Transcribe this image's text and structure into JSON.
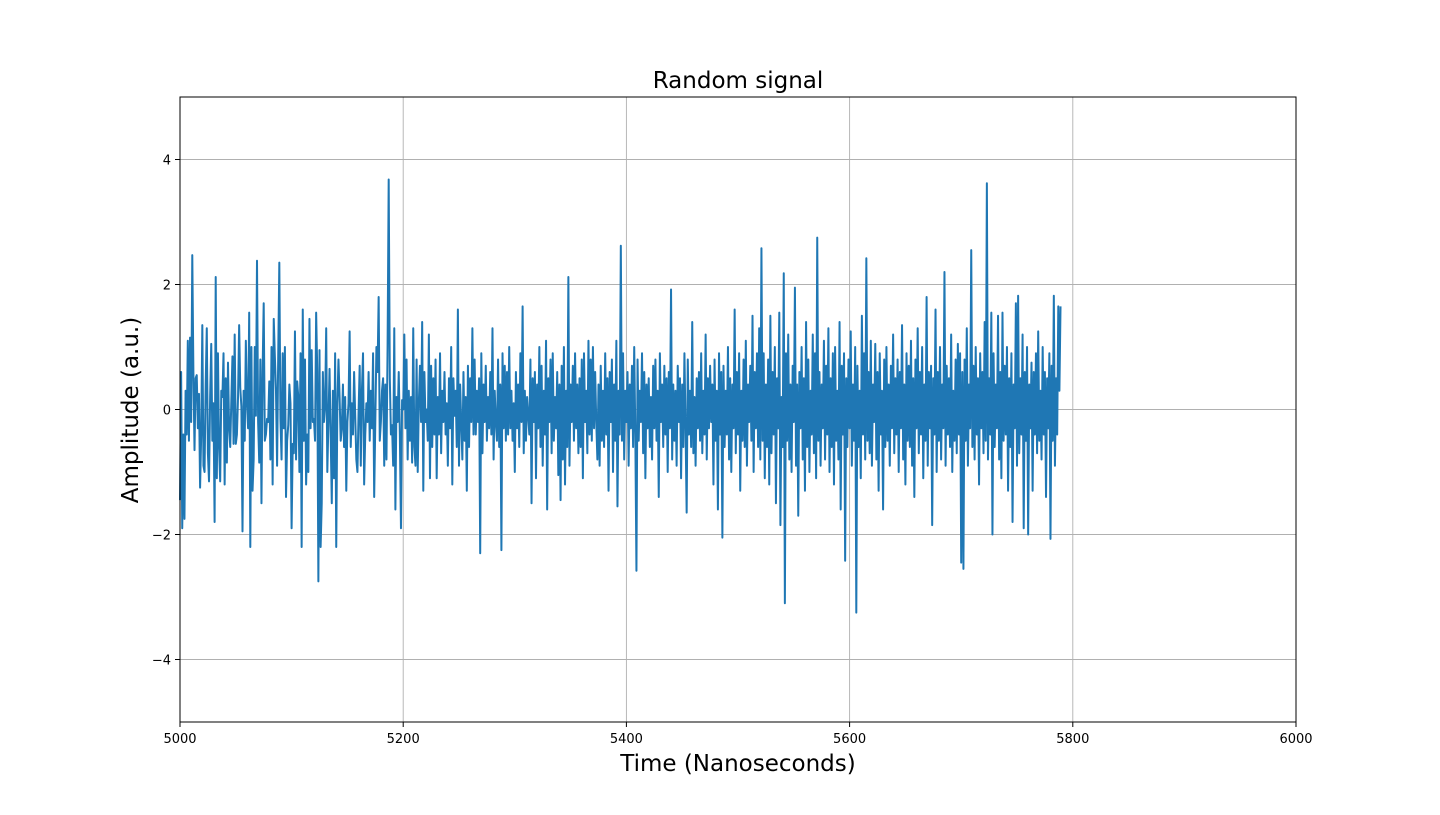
{
  "chart_data": {
    "type": "line",
    "title": "Random signal",
    "xlabel": "Time (Nanoseconds)",
    "ylabel": "Amplitude (a.u.)",
    "xlim": [
      5000,
      6000
    ],
    "ylim": [
      -5,
      5
    ],
    "xticks": [
      5000,
      5200,
      5400,
      5600,
      5800,
      6000
    ],
    "xtick_labels": [
      "5000",
      "5200",
      "5400",
      "5600",
      "5800",
      "6000"
    ],
    "yticks": [
      -4,
      -2,
      0,
      2,
      4
    ],
    "ytick_labels": [
      "−4",
      "−2",
      "0",
      "2",
      "4"
    ],
    "grid": true,
    "legend": "none",
    "colors": {
      "line": "#1f77b4",
      "grid": "#b0b0b0",
      "axes": "#000000"
    },
    "series": [
      {
        "x_start": 5000,
        "x_step": 1,
        "values": [
          -1.45,
          0.6,
          -1.9,
          -0.4,
          -1.75,
          0.3,
          -0.4,
          1.1,
          -0.5,
          1.15,
          -0.2,
          2.47,
          0.6,
          -0.65,
          0.5,
          0.55,
          -0.3,
          0.25,
          -1.25,
          -0.4,
          1.35,
          -0.9,
          -1.0,
          0.4,
          1.3,
          -0.7,
          -1.15,
          0.2,
          1.05,
          -0.5,
          0.1,
          -1.8,
          2.12,
          -1.1,
          0.9,
          -0.6,
          -1.15,
          0.3,
          0.2,
          0.9,
          -1.2,
          0.5,
          -0.85,
          0.75,
          -0.3,
          -0.6,
          0.15,
          0.85,
          -0.55,
          1.2,
          -0.55,
          -0.4,
          0.2,
          1.35,
          0.35,
          0.05,
          -1.95,
          0.3,
          -0.5,
          1.1,
          0.1,
          -0.3,
          1.55,
          -2.2,
          1.0,
          -1.3,
          -0.8,
          1.0,
          -0.1,
          2.38,
          -0.2,
          -0.85,
          0.8,
          -1.5,
          0.6,
          1.7,
          -0.5,
          -0.4,
          -0.15,
          -0.2,
          0.45,
          -0.8,
          1.0,
          -1.2,
          1.45,
          0.85,
          0.3,
          -0.9,
          0.85,
          2.35,
          -0.15,
          -0.8,
          0.9,
          -0.3,
          1.0,
          -1.4,
          -0.5,
          -0.25,
          0.4,
          0.1,
          -1.9,
          -0.55,
          -0.7,
          1.25,
          -0.8,
          0.45,
          0.2,
          -1.0,
          0.9,
          -2.2,
          1.6,
          -0.5,
          0.8,
          -1.2,
          -0.4,
          -1.0,
          1.45,
          -0.3,
          0.95,
          -0.2,
          -0.15,
          -0.5,
          1.55,
          0.6,
          -2.75,
          0.95,
          -2.2,
          -1.5,
          0.6,
          -0.2,
          0.05,
          1.3,
          -1.0,
          -0.2,
          0.65,
          -0.4,
          -1.5,
          0.3,
          -1.1,
          0.9,
          -2.2,
          0.1,
          0.8,
          0.2,
          -0.5,
          -0.3,
          0.4,
          -0.6,
          0.2,
          -1.3,
          -0.2,
          0.1,
          1.25,
          -0.6,
          0.1,
          -0.4,
          0.6,
          -0.1,
          -0.8,
          -1.0,
          -0.05,
          0.7,
          -0.9,
          0.3,
          0.9,
          -1.2,
          -0.4,
          0.1,
          -0.2,
          0.6,
          -0.5,
          0.3,
          -0.3,
          0.9,
          -1.4,
          -0.2,
          1.0,
          0.6,
          1.8,
          -0.5,
          -0.2,
          0.3,
          0.5,
          -0.9,
          0.4,
          -0.8,
          1.0,
          3.68,
          0.5,
          -0.4,
          -0.25,
          -0.9,
          1.3,
          -1.6,
          0.2,
          -0.2,
          0.6,
          -0.4,
          -1.9,
          0.15,
          0.0,
          1.2,
          -0.3,
          0.8,
          -0.8,
          0.3,
          -0.5,
          0.2,
          -0.85,
          1.3,
          -0.6,
          -0.9,
          0.8,
          -1.0,
          0.1,
          0.7,
          -0.2,
          1.4,
          -1.3,
          0.6,
          -0.2,
          0.0,
          -0.5,
          1.2,
          -1.1,
          0.7,
          -0.6,
          0.5,
          -0.4,
          0.8,
          -1.1,
          0.2,
          -0.4,
          0.9,
          -0.7,
          0.3,
          -0.2,
          0.6,
          -0.4,
          0.1,
          -0.9,
          0.5,
          -0.3,
          1.0,
          -1.2,
          0.5,
          -0.1,
          0.3,
          -0.6,
          1.6,
          -0.9,
          0.4,
          -0.2,
          -0.8,
          0.6,
          -0.5,
          0.2,
          -1.3,
          0.7,
          -0.6,
          0.5,
          -0.2,
          1.3,
          -0.4,
          0.8,
          -0.4,
          0.3,
          -0.2,
          0.5,
          -2.3,
          0.9,
          -0.7,
          0.4,
          -0.2,
          0.7,
          -0.5,
          0.2,
          -0.3,
          0.6,
          -0.4,
          1.3,
          -0.8,
          0.3,
          -0.2,
          -0.5,
          0.8,
          -0.6,
          0.4,
          -2.25,
          0.9,
          -0.3,
          0.7,
          -0.5,
          0.6,
          -0.4,
          1.0,
          -0.3,
          0.3,
          -0.5,
          0.1,
          -1.0,
          0.6,
          -0.3,
          0.4,
          -0.6,
          0.9,
          -0.2,
          1.65,
          -0.7,
          0.3,
          -0.5,
          0.2,
          -0.1,
          -0.4,
          0.8,
          -1.5,
          0.5,
          -0.2,
          0.6,
          -1.1,
          0.4,
          -0.3,
          1.0,
          -0.6,
          0.7,
          -0.9,
          0.3,
          -0.4,
          1.1,
          -1.6,
          0.5,
          -0.2,
          0.8,
          -0.7,
          0.9,
          -0.5,
          0.2,
          -0.3,
          0.6,
          -1.05,
          0.4,
          -1.45,
          0.7,
          -0.8,
          1.0,
          -1.2,
          0.3,
          -0.6,
          2.12,
          -0.9,
          0.4,
          -0.2,
          0.7,
          -0.5,
          0.9,
          -0.3,
          0.4,
          -0.7,
          0.5,
          -0.6,
          0.8,
          -1.1,
          0.9,
          -0.2,
          0.3,
          -0.7,
          1.1,
          -0.4,
          0.8,
          -0.5,
          1.0,
          -0.3,
          0.6,
          -0.2,
          -0.8,
          0.4,
          -0.9,
          0.7,
          -0.5,
          0.3,
          -0.6,
          0.9,
          -0.4,
          0.5,
          -1.3,
          0.6,
          -0.2,
          0.8,
          -1.0,
          0.4,
          -0.5,
          1.1,
          -1.55,
          0.3,
          -0.4,
          2.62,
          -0.5,
          0.9,
          -0.8,
          0.3,
          -0.2,
          0.6,
          -0.9,
          0.4,
          -0.3,
          0.7,
          -0.6,
          1.0,
          -0.4,
          -2.58,
          0.8,
          -0.5,
          0.3,
          -0.2,
          0.9,
          -0.7,
          0.6,
          -1.1,
          0.4,
          -0.3,
          0.5,
          -0.6,
          0.2,
          -0.8,
          0.7,
          -0.3,
          0.8,
          -0.5,
          0.3,
          -1.4,
          0.9,
          -0.2,
          0.4,
          -0.6,
          0.7,
          -0.4,
          0.5,
          -1.0,
          0.6,
          -0.3,
          1.92,
          -0.8,
          0.4,
          -0.5,
          0.3,
          -0.9,
          0.7,
          -0.2,
          0.5,
          -1.1,
          0.4,
          -0.6,
          0.9,
          -0.3,
          -1.65,
          0.8,
          -0.4,
          0.3,
          -0.6,
          1.4,
          -0.7,
          0.2,
          -0.9,
          0.5,
          -0.3,
          0.6,
          -0.5,
          0.9,
          -0.7,
          0.3,
          -0.4,
          1.2,
          -0.8,
          0.5,
          -0.3,
          0.7,
          -0.2,
          0.4,
          -1.2,
          0.8,
          -0.5,
          0.3,
          -1.6,
          0.9,
          -0.4,
          0.6,
          -2.05,
          0.7,
          -0.6,
          0.3,
          -0.4,
          1.0,
          -0.8,
          0.5,
          -1.0,
          0.4,
          -0.3,
          1.6,
          -0.7,
          0.6,
          -0.4,
          0.9,
          -1.3,
          0.3,
          -0.5,
          0.8,
          -0.6,
          1.1,
          -0.9,
          0.4,
          -0.2,
          0.7,
          -0.5,
          1.5,
          -1.0,
          0.6,
          -0.3,
          0.9,
          -0.6,
          1.3,
          -0.8,
          2.58,
          -0.5,
          0.9,
          -1.1,
          0.4,
          -0.6,
          0.8,
          -1.2,
          1.5,
          -0.7,
          0.6,
          -0.4,
          1.0,
          -1.5,
          0.5,
          -0.3,
          1.55,
          -1.85,
          0.2,
          -0.6,
          2.18,
          -3.1,
          0.9,
          -0.5,
          1.2,
          -0.8,
          0.4,
          -1.0,
          0.7,
          -0.2,
          1.95,
          -0.9,
          0.4,
          -1.7,
          0.6,
          -0.3,
          1.0,
          -0.8,
          0.5,
          -1.3,
          1.4,
          -0.6,
          0.8,
          -1.0,
          0.3,
          -0.4,
          1.2,
          -0.7,
          0.9,
          -1.1,
          2.75,
          -0.5,
          0.6,
          -0.9,
          0.4,
          -0.3,
          1.1,
          -0.8,
          0.7,
          -0.4,
          1.3,
          -1.0,
          0.5,
          -0.6,
          0.9,
          -1.2,
          1.0,
          -0.5,
          0.3,
          -0.8,
          1.4,
          -1.6,
          0.7,
          -0.4,
          0.9,
          -2.42,
          0.5,
          -0.6,
          0.8,
          -0.3,
          1.25,
          -0.9,
          0.4,
          -0.5,
          1.0,
          -3.25,
          0.7,
          -0.6,
          0.3,
          -1.1,
          1.5,
          -0.4,
          0.9,
          -0.8,
          2.42,
          -0.5,
          0.6,
          -0.7,
          1.1,
          -0.9,
          0.4,
          -0.2,
          1.05,
          -0.8,
          0.6,
          -1.3,
          0.9,
          -0.4,
          0.3,
          -1.6,
          0.8,
          -0.6,
          1.0,
          -0.5,
          0.4,
          -0.9,
          0.7,
          -0.3,
          1.2,
          -0.7,
          0.5,
          -0.4,
          0.8,
          -1.0,
          0.6,
          -0.3,
          1.35,
          -0.8,
          0.4,
          -1.2,
          0.9,
          -0.5,
          0.7,
          -0.6,
          1.1,
          -0.9,
          0.5,
          -1.4,
          0.8,
          -0.3,
          1.3,
          -0.7,
          0.6,
          -0.4,
          1.0,
          -1.1,
          0.4,
          -0.5,
          1.8,
          -0.9,
          0.6,
          -0.3,
          0.7,
          -1.85,
          0.5,
          -0.4,
          1.6,
          -1.0,
          0.6,
          -0.5,
          1.0,
          -0.8,
          0.4,
          -0.3,
          2.2,
          -0.9,
          0.7,
          -0.4,
          0.5,
          -0.6,
          1.2,
          -1.0,
          0.3,
          -0.5,
          0.8,
          -0.7,
          1.05,
          -0.4,
          0.9,
          -2.45,
          0.6,
          -2.55,
          0.8,
          -0.5,
          1.3,
          -0.9,
          0.4,
          -0.3,
          2.55,
          -0.6,
          0.7,
          -0.8,
          1.0,
          -0.4,
          0.5,
          -1.2,
          0.9,
          -0.3,
          0.6,
          -0.7,
          1.4,
          -0.5,
          3.62,
          -0.8,
          0.5,
          -0.4,
          1.55,
          -2.0,
          0.9,
          -0.6,
          0.4,
          -0.3,
          1.5,
          -0.8,
          0.6,
          -1.1,
          1.55,
          -0.5,
          0.7,
          -0.4,
          1.0,
          -1.3,
          0.5,
          -0.6,
          0.9,
          -1.8,
          0.4,
          -0.3,
          1.7,
          -0.9,
          1.82,
          -0.7,
          0.5,
          -0.4,
          1.2,
          -1.9,
          0.6,
          -0.5,
          1.0,
          -2.0,
          0.4,
          -0.3,
          0.75,
          -1.3,
          0.6,
          -0.4,
          0.9,
          -0.7,
          1.25,
          -0.5,
          0.3,
          -0.8,
          1.0,
          -0.4,
          0.6,
          -1.4,
          0.5,
          -0.3,
          0.9,
          -2.07,
          0.7,
          -0.5,
          1.82,
          -0.9,
          0.5,
          -0.4,
          1.65,
          0.3,
          1.65
        ]
      }
    ]
  }
}
